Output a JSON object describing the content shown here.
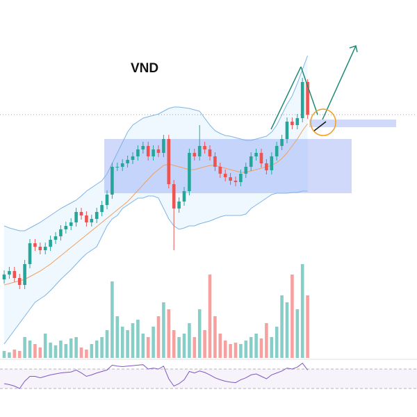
{
  "chart_data": {
    "type": "candlestick",
    "title": "VND",
    "up_color": "#26a69a",
    "down_color": "#ef5350",
    "ylim": [
      0,
      600
    ],
    "open": [
      198,
      205,
      210,
      200,
      190,
      220,
      250,
      245,
      240,
      245,
      255,
      260,
      270,
      275,
      280,
      295,
      290,
      280,
      285,
      295,
      305,
      320,
      360,
      360,
      365,
      370,
      375,
      385,
      390,
      375,
      385,
      380,
      400,
      335,
      300,
      310,
      325,
      380,
      375,
      390,
      385,
      375,
      360,
      350,
      345,
      340,
      338,
      350,
      360,
      375,
      380,
      365,
      355,
      375,
      390,
      400,
      425,
      420,
      430,
      482
    ],
    "high": [
      211,
      216,
      216,
      206,
      226,
      256,
      256,
      251,
      251,
      261,
      266,
      276,
      281,
      286,
      301,
      301,
      296,
      291,
      301,
      311,
      326,
      366,
      366,
      371,
      376,
      381,
      391,
      396,
      396,
      391,
      391,
      406,
      406,
      341,
      316,
      331,
      386,
      386,
      420,
      396,
      391,
      381,
      366,
      356,
      351,
      346,
      356,
      366,
      381,
      386,
      386,
      371,
      381,
      396,
      406,
      431,
      431,
      436,
      488,
      486
    ],
    "low": [
      192,
      199,
      194,
      184,
      184,
      214,
      239,
      234,
      234,
      239,
      249,
      254,
      264,
      269,
      274,
      284,
      274,
      274,
      279,
      289,
      299,
      314,
      354,
      354,
      359,
      364,
      369,
      379,
      369,
      369,
      374,
      374,
      329,
      240,
      294,
      304,
      319,
      369,
      369,
      379,
      369,
      354,
      344,
      339,
      334,
      332,
      332,
      344,
      354,
      369,
      359,
      349,
      349,
      369,
      384,
      394,
      414,
      414,
      424,
      429
    ],
    "close": [
      205,
      210,
      200,
      190,
      220,
      250,
      245,
      240,
      245,
      255,
      260,
      270,
      275,
      280,
      295,
      290,
      280,
      285,
      295,
      305,
      320,
      360,
      360,
      365,
      370,
      375,
      385,
      390,
      375,
      385,
      380,
      400,
      335,
      300,
      310,
      325,
      380,
      375,
      390,
      385,
      375,
      360,
      350,
      345,
      340,
      338,
      350,
      360,
      375,
      380,
      365,
      355,
      375,
      390,
      400,
      425,
      420,
      430,
      482,
      435
    ],
    "ma": [
      190,
      192,
      194,
      196,
      198,
      202,
      206,
      210,
      215,
      220,
      226,
      232,
      238,
      244,
      250,
      256,
      262,
      268,
      274,
      280,
      286,
      292,
      298,
      304,
      310,
      318,
      326,
      334,
      342,
      350,
      356,
      362,
      364,
      362,
      360,
      358,
      356,
      356,
      358,
      360,
      362,
      362,
      360,
      358,
      356,
      354,
      352,
      352,
      354,
      356,
      358,
      360,
      362,
      366,
      372,
      380,
      390,
      400,
      412,
      422
    ],
    "ma_color": "#f0a060",
    "bb_upper": [
      275,
      272,
      270,
      268,
      268,
      272,
      276,
      280,
      285,
      290,
      295,
      300,
      304,
      308,
      312,
      318,
      325,
      330,
      335,
      340,
      350,
      365,
      380,
      395,
      410,
      420,
      425,
      430,
      432,
      434,
      436,
      440,
      444,
      446,
      446,
      445,
      444,
      442,
      440,
      430,
      420,
      412,
      408,
      405,
      404,
      402,
      400,
      398,
      398,
      400,
      402,
      404,
      410,
      420,
      435,
      450,
      462,
      480,
      500,
      520
    ],
    "bb_lower": [
      105,
      115,
      125,
      135,
      145,
      155,
      165,
      170,
      175,
      182,
      190,
      198,
      205,
      212,
      220,
      228,
      235,
      240,
      245,
      260,
      275,
      285,
      290,
      300,
      305,
      310,
      315,
      315,
      318,
      318,
      315,
      300,
      285,
      275,
      270,
      272,
      275,
      275,
      278,
      280,
      282,
      285,
      288,
      290,
      290,
      290,
      290,
      292,
      300,
      305,
      310,
      315,
      320,
      322,
      322,
      322,
      323,
      323,
      325,
      325
    ],
    "bb_color": "#7fb3e6",
    "volume": [
      10,
      8,
      12,
      10,
      30,
      25,
      20,
      15,
      35,
      22,
      18,
      25,
      20,
      28,
      30,
      15,
      12,
      20,
      25,
      30,
      40,
      110,
      60,
      45,
      40,
      50,
      55,
      35,
      30,
      45,
      60,
      80,
      70,
      40,
      30,
      35,
      50,
      30,
      70,
      40,
      120,
      60,
      35,
      25,
      20,
      22,
      20,
      25,
      30,
      35,
      28,
      50,
      30,
      45,
      90,
      80,
      120,
      70,
      135,
      90
    ],
    "volume_ylim": [
      0,
      150
    ],
    "rsi": [
      40,
      38,
      35,
      30,
      45,
      55,
      55,
      52,
      55,
      58,
      60,
      62,
      63,
      64,
      68,
      62,
      55,
      58,
      62,
      65,
      68,
      78,
      76,
      75,
      76,
      77,
      78,
      79,
      70,
      72,
      70,
      76,
      50,
      35,
      40,
      48,
      65,
      62,
      66,
      63,
      58,
      52,
      48,
      45,
      43,
      42,
      48,
      52,
      58,
      60,
      55,
      50,
      58,
      62,
      66,
      72,
      70,
      74,
      82,
      68
    ],
    "rsi_ylim": [
      0,
      100
    ],
    "rsi_levels": [
      70,
      30
    ],
    "rsi_color": "#7e57c2"
  }
}
